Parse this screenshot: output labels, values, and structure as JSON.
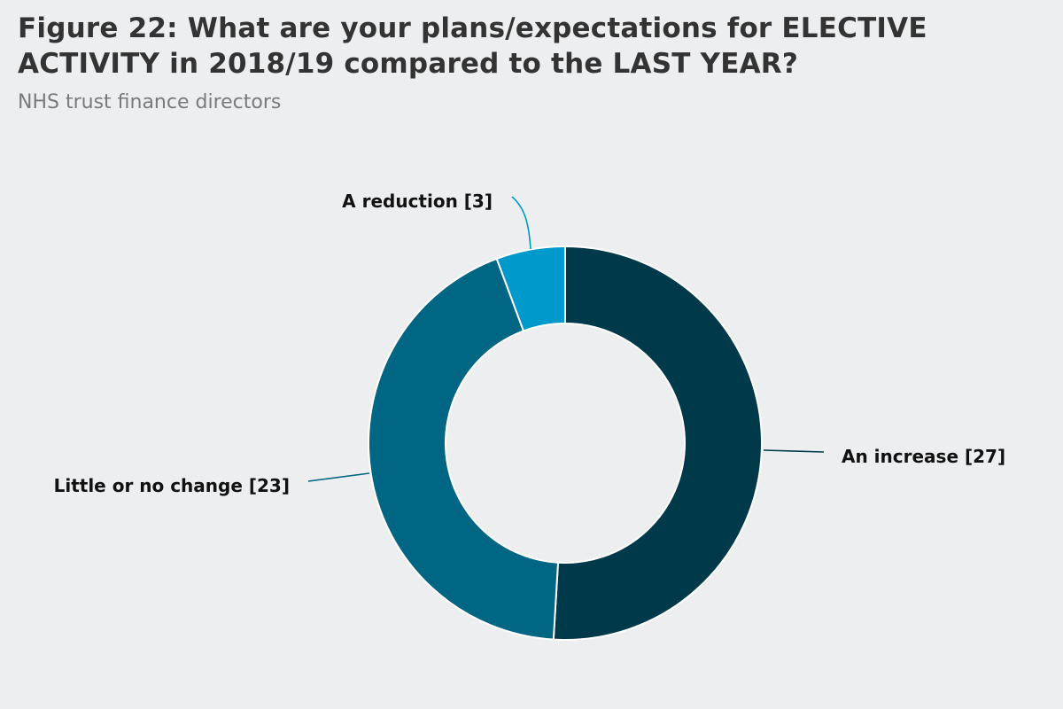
{
  "title": "Figure 22: What are your plans/expectations for ELECTIVE ACTIVITY in 2018/19 compared to the LAST YEAR?",
  "subtitle": "NHS trust finance directors",
  "chart_data": {
    "type": "pie",
    "variant": "donut",
    "title": "Figure 22: What are your plans/expectations for ELECTIVE ACTIVITY in 2018/19 compared to the LAST YEAR?",
    "subtitle": "NHS trust finance directors",
    "legend": "none",
    "slices": [
      {
        "name": "An increase",
        "value": 27,
        "label": "An increase [27]",
        "color": "#003a4a"
      },
      {
        "name": "Little or no change",
        "value": 23,
        "label": "Little or no change [23]",
        "color": "#006684"
      },
      {
        "name": "A reduction",
        "value": 3,
        "label": "A reduction [3]",
        "color": "#0099cc"
      }
    ]
  }
}
